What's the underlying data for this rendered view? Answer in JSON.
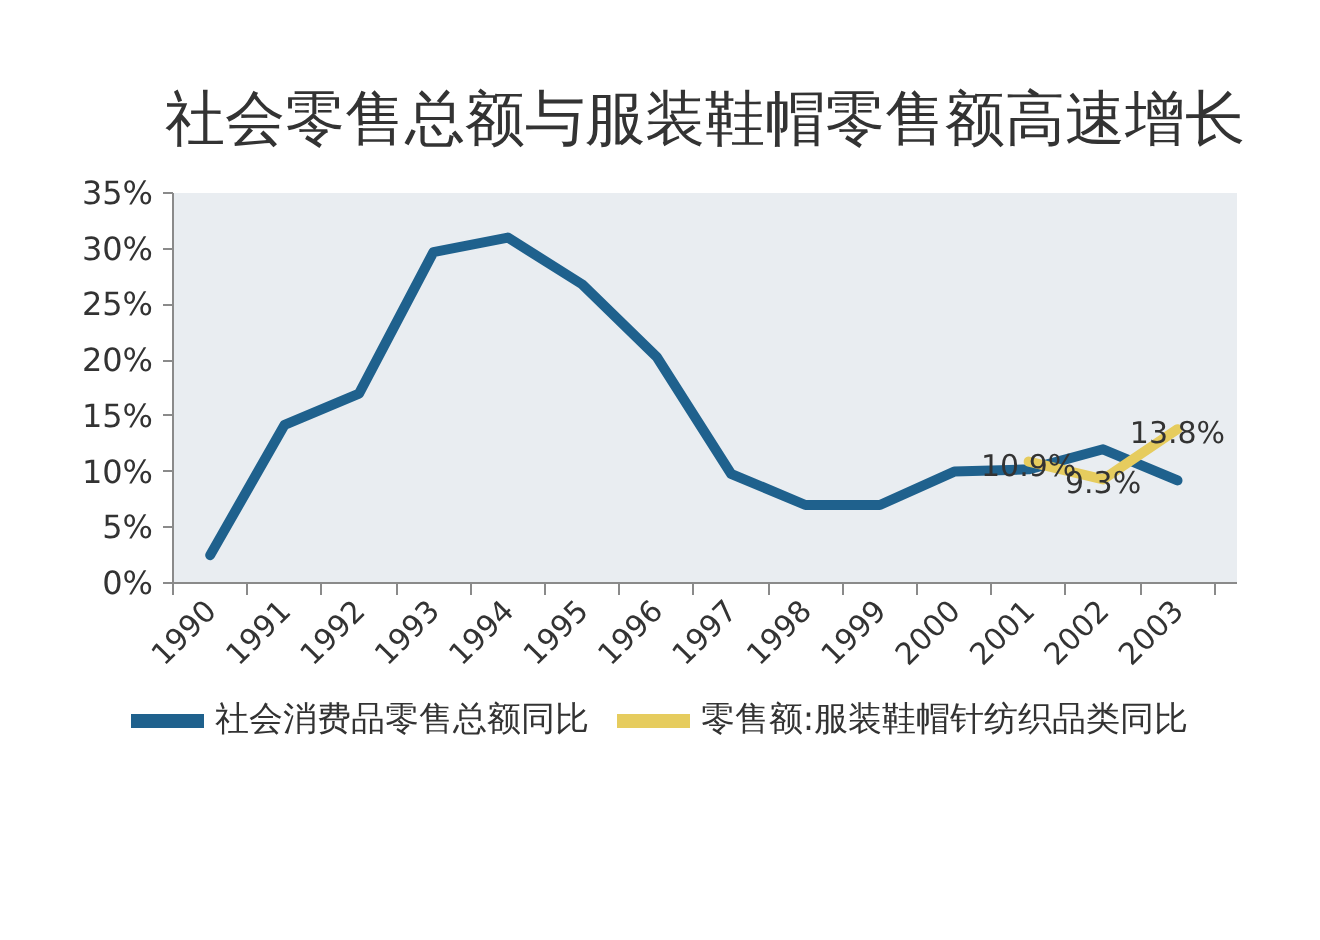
{
  "chart_data": {
    "type": "line",
    "title": "社会零售总额与服装鞋帽零售额高速增长",
    "categories": [
      "1990",
      "1991",
      "1992",
      "1993",
      "1994",
      "1995",
      "1996",
      "1997",
      "1998",
      "1999",
      "2000",
      "2001",
      "2002",
      "2003"
    ],
    "series": [
      {
        "name": "社会消费品零售总额同比",
        "color": "#1f618d",
        "values": [
          2.5,
          14.2,
          17.0,
          29.7,
          31.0,
          26.8,
          20.3,
          9.8,
          7.0,
          7.0,
          10.0,
          10.2,
          12.0,
          9.2
        ]
      },
      {
        "name": "零售额:服装鞋帽针纺织品类同比",
        "color": "#e6cc5e",
        "values": [
          null,
          null,
          null,
          null,
          null,
          null,
          null,
          null,
          null,
          null,
          null,
          10.9,
          9.3,
          13.8
        ],
        "value_labels": [
          null,
          null,
          null,
          null,
          null,
          null,
          null,
          null,
          null,
          null,
          null,
          "10.9%",
          "9.3%",
          "13.8%"
        ]
      }
    ],
    "ylim": [
      0,
      35
    ],
    "yticks": [
      {
        "value": 0,
        "label": "0%"
      },
      {
        "value": 5,
        "label": "5%"
      },
      {
        "value": 10,
        "label": "10%"
      },
      {
        "value": 15,
        "label": "15%"
      },
      {
        "value": 20,
        "label": "20%"
      },
      {
        "value": 25,
        "label": "25%"
      },
      {
        "value": 30,
        "label": "30%"
      },
      {
        "value": 35,
        "label": "35%"
      }
    ],
    "legend": "bottom",
    "line_style": "solid"
  }
}
